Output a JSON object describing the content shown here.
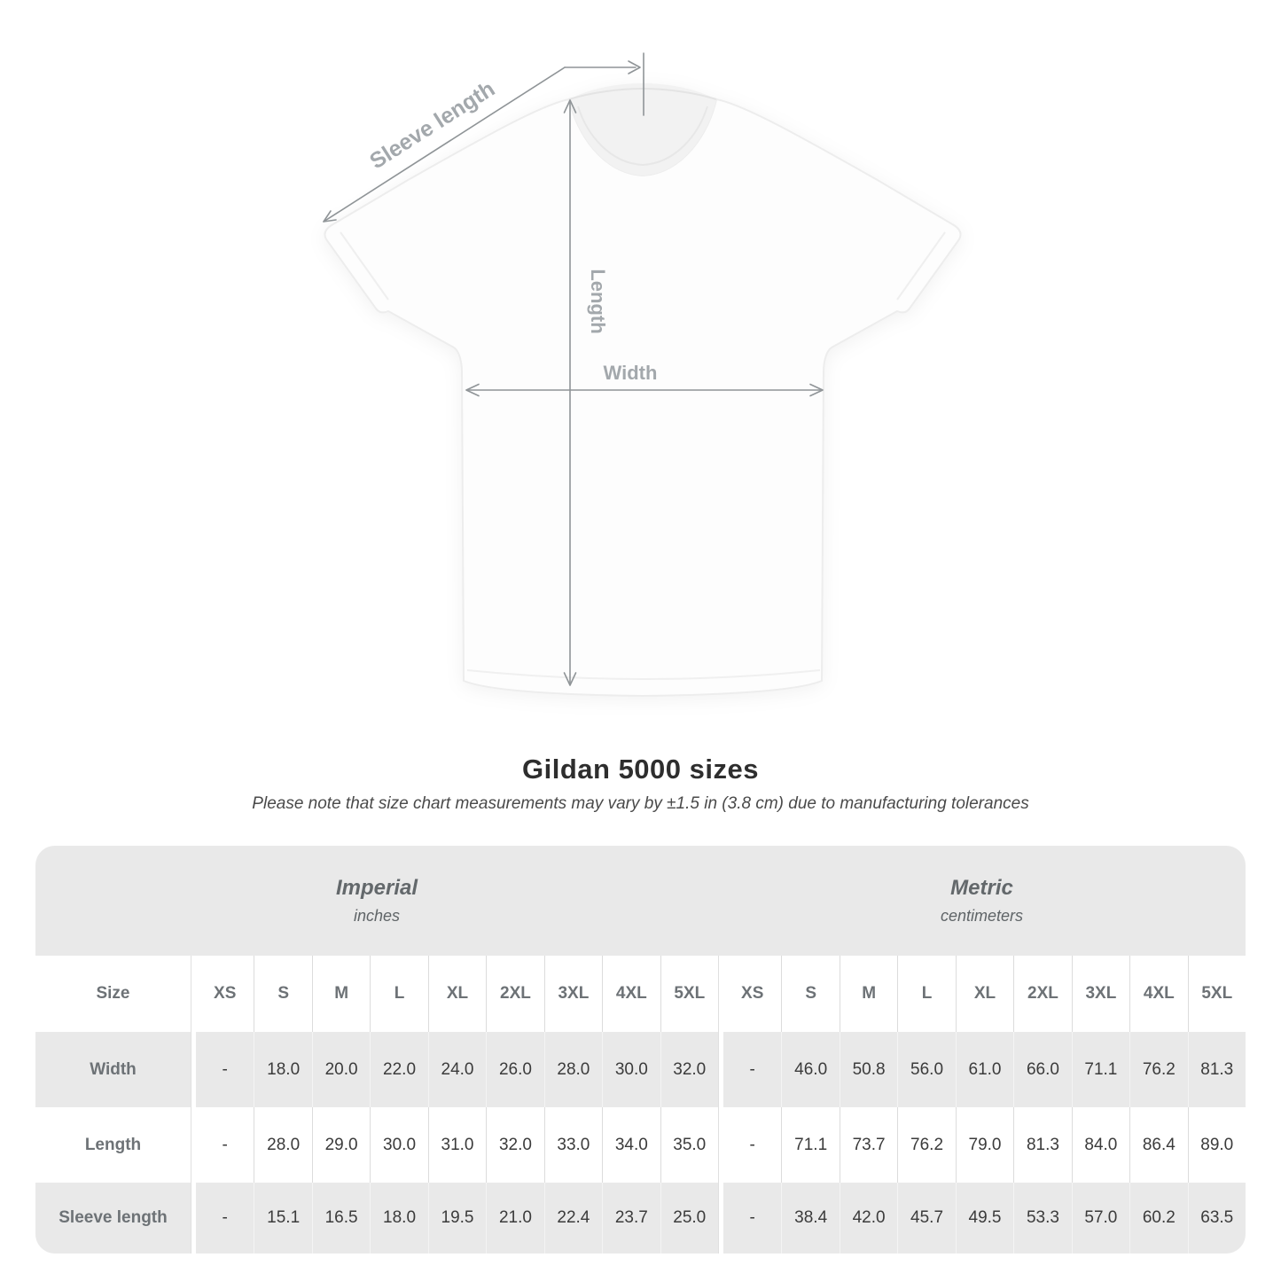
{
  "diagram": {
    "sleeve_length_label": "Sleeve length",
    "length_label": "Length",
    "width_label": "Width"
  },
  "heading": {
    "title": "Gildan 5000 sizes",
    "subtitle": "Please note that size chart measurements may vary by ±1.5 in (3.8 cm) due to manufacturing tolerances"
  },
  "table": {
    "size_column_header": "Size",
    "sections": [
      {
        "name": "Imperial",
        "unit": "inches"
      },
      {
        "name": "Metric",
        "unit": "centimeters"
      }
    ],
    "sizes": [
      "XS",
      "S",
      "M",
      "L",
      "XL",
      "2XL",
      "3XL",
      "4XL",
      "5XL"
    ],
    "rows": [
      {
        "label": "Width",
        "imperial": [
          "-",
          "18.0",
          "20.0",
          "22.0",
          "24.0",
          "26.0",
          "28.0",
          "30.0",
          "32.0"
        ],
        "metric": [
          "-",
          "46.0",
          "50.8",
          "56.0",
          "61.0",
          "66.0",
          "71.1",
          "76.2",
          "81.3"
        ]
      },
      {
        "label": "Length",
        "imperial": [
          "-",
          "28.0",
          "29.0",
          "30.0",
          "31.0",
          "32.0",
          "33.0",
          "34.0",
          "35.0"
        ],
        "metric": [
          "-",
          "71.1",
          "73.7",
          "76.2",
          "79.0",
          "81.3",
          "84.0",
          "86.4",
          "89.0"
        ]
      },
      {
        "label": "Sleeve length",
        "imperial": [
          "-",
          "15.1",
          "16.5",
          "18.0",
          "19.5",
          "21.0",
          "22.4",
          "23.7",
          "25.0"
        ],
        "metric": [
          "-",
          "38.4",
          "42.0",
          "45.7",
          "49.5",
          "53.3",
          "57.0",
          "60.2",
          "63.5"
        ]
      }
    ]
  },
  "colors": {
    "section_band_gray": "#e9e9e9",
    "row_stripe_gray": "#e9e9e9",
    "grid_line": "#dcdcdc",
    "header_text": "#6d7276",
    "value_text": "#3b3b3b",
    "diagram_label_gray": "#a3a8ac",
    "diagram_line_gray": "#8f9497",
    "title_text": "#2e2e2e"
  }
}
